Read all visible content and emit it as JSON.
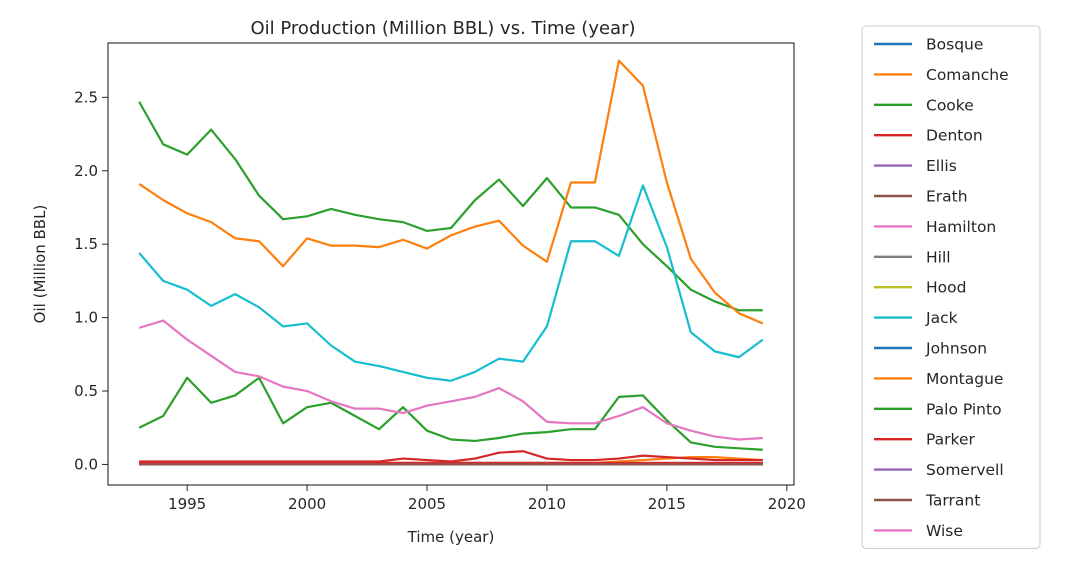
{
  "chart_data": {
    "type": "line",
    "title": "Oil Production (Million BBL) vs. Time (year)",
    "xlabel": "Time (year)",
    "ylabel": "Oil (Million BBL)",
    "xlim": [
      1991.7,
      2020.3
    ],
    "ylim": [
      -0.14,
      2.87
    ],
    "xticks": [
      1995,
      2000,
      2005,
      2010,
      2015,
      2020
    ],
    "yticks": [
      0.0,
      0.5,
      1.0,
      1.5,
      2.0,
      2.5
    ],
    "xtick_labels": [
      "1995",
      "2000",
      "2005",
      "2010",
      "2015",
      "2020"
    ],
    "ytick_labels": [
      "0.0",
      "0.5",
      "1.0",
      "1.5",
      "2.0",
      "2.5"
    ],
    "grid": false,
    "legend_position": "outside-right",
    "x": [
      1993,
      1994,
      1995,
      1996,
      1997,
      1998,
      1999,
      2000,
      2001,
      2002,
      2003,
      2004,
      2005,
      2006,
      2007,
      2008,
      2009,
      2010,
      2011,
      2012,
      2013,
      2014,
      2015,
      2016,
      2017,
      2018,
      2019
    ],
    "series": [
      {
        "name": "Bosque",
        "color": "#1f77b4",
        "values": [
          0.0,
          0.0,
          0.0,
          0.0,
          0.0,
          0.0,
          0.0,
          0.0,
          0.0,
          0.0,
          0.0,
          0.0,
          0.0,
          0.0,
          0.0,
          0.0,
          0.0,
          0.0,
          0.0,
          0.0,
          0.0,
          0.0,
          0.0,
          0.0,
          0.0,
          0.0,
          0.0
        ]
      },
      {
        "name": "Comanche",
        "color": "#ff7f0e",
        "values": [
          0.01,
          0.01,
          0.01,
          0.01,
          0.01,
          0.01,
          0.01,
          0.01,
          0.01,
          0.01,
          0.01,
          0.01,
          0.01,
          0.01,
          0.01,
          0.01,
          0.01,
          0.01,
          0.01,
          0.01,
          0.02,
          0.03,
          0.04,
          0.05,
          0.05,
          0.04,
          0.03
        ]
      },
      {
        "name": "Cooke",
        "color": "#2ca02c",
        "values": [
          2.47,
          2.18,
          2.11,
          2.28,
          2.08,
          1.83,
          1.67,
          1.69,
          1.74,
          1.7,
          1.67,
          1.65,
          1.59,
          1.61,
          1.8,
          1.94,
          1.76,
          1.95,
          1.75,
          1.75,
          1.7,
          1.5,
          1.35,
          1.19,
          1.11,
          1.05,
          1.05
        ]
      },
      {
        "name": "Denton",
        "color": "#d62728",
        "values": [
          0.02,
          0.02,
          0.02,
          0.02,
          0.02,
          0.02,
          0.02,
          0.02,
          0.02,
          0.02,
          0.02,
          0.04,
          0.03,
          0.02,
          0.04,
          0.08,
          0.09,
          0.04,
          0.03,
          0.03,
          0.04,
          0.06,
          0.05,
          0.04,
          0.03,
          0.03,
          0.03
        ]
      },
      {
        "name": "Ellis",
        "color": "#9467bd",
        "values": [
          0.0,
          0.0,
          0.0,
          0.0,
          0.0,
          0.0,
          0.0,
          0.0,
          0.0,
          0.0,
          0.0,
          0.0,
          0.0,
          0.0,
          0.0,
          0.0,
          0.0,
          0.0,
          0.0,
          0.0,
          0.0,
          0.0,
          0.0,
          0.0,
          0.0,
          0.0,
          0.0
        ]
      },
      {
        "name": "Erath",
        "color": "#8c564b",
        "values": [
          0.01,
          0.01,
          0.01,
          0.01,
          0.01,
          0.01,
          0.01,
          0.01,
          0.01,
          0.01,
          0.01,
          0.01,
          0.01,
          0.01,
          0.01,
          0.01,
          0.01,
          0.01,
          0.01,
          0.01,
          0.01,
          0.01,
          0.01,
          0.01,
          0.01,
          0.01,
          0.01
        ]
      },
      {
        "name": "Hamilton",
        "color": "#e377c2",
        "values": [
          0.0,
          0.0,
          0.0,
          0.0,
          0.0,
          0.0,
          0.0,
          0.0,
          0.0,
          0.0,
          0.0,
          0.0,
          0.0,
          0.0,
          0.0,
          0.0,
          0.0,
          0.0,
          0.0,
          0.0,
          0.0,
          0.0,
          0.0,
          0.0,
          0.0,
          0.0,
          0.0
        ]
      },
      {
        "name": "Hill",
        "color": "#7f7f7f",
        "values": [
          0.0,
          0.0,
          0.0,
          0.0,
          0.0,
          0.0,
          0.0,
          0.0,
          0.0,
          0.0,
          0.0,
          0.0,
          0.0,
          0.0,
          0.0,
          0.0,
          0.0,
          0.0,
          0.0,
          0.0,
          0.0,
          0.0,
          0.0,
          0.0,
          0.0,
          0.0,
          0.0
        ]
      },
      {
        "name": "Hood",
        "color": "#bcbd22",
        "values": [
          0.0,
          0.0,
          0.0,
          0.0,
          0.0,
          0.0,
          0.0,
          0.0,
          0.0,
          0.0,
          0.0,
          0.0,
          0.0,
          0.0,
          0.0,
          0.0,
          0.0,
          0.0,
          0.0,
          0.0,
          0.0,
          0.0,
          0.0,
          0.0,
          0.0,
          0.0,
          0.0
        ]
      },
      {
        "name": "Jack",
        "color": "#17becf",
        "values": [
          1.44,
          1.25,
          1.19,
          1.08,
          1.16,
          1.07,
          0.94,
          0.96,
          0.81,
          0.7,
          0.67,
          0.63,
          0.59,
          0.57,
          0.63,
          0.72,
          0.7,
          0.94,
          1.52,
          1.52,
          1.42,
          1.9,
          1.48,
          0.9,
          0.77,
          0.73,
          0.85
        ]
      },
      {
        "name": "Johnson",
        "color": "#1f77b4",
        "values": [
          0.0,
          0.0,
          0.0,
          0.0,
          0.0,
          0.0,
          0.0,
          0.0,
          0.0,
          0.0,
          0.0,
          0.0,
          0.0,
          0.0,
          0.0,
          0.0,
          0.0,
          0.0,
          0.0,
          0.0,
          0.0,
          0.0,
          0.0,
          0.0,
          0.0,
          0.0,
          0.0
        ]
      },
      {
        "name": "Montague",
        "color": "#ff7f0e",
        "values": [
          1.91,
          1.8,
          1.71,
          1.65,
          1.54,
          1.52,
          1.35,
          1.54,
          1.49,
          1.49,
          1.48,
          1.53,
          1.47,
          1.56,
          1.62,
          1.66,
          1.49,
          1.38,
          1.92,
          1.92,
          2.75,
          2.58,
          1.92,
          1.4,
          1.17,
          1.03,
          0.96
        ]
      },
      {
        "name": "Palo Pinto",
        "color": "#2ca02c",
        "values": [
          0.25,
          0.33,
          0.59,
          0.42,
          0.47,
          0.59,
          0.28,
          0.39,
          0.42,
          0.33,
          0.24,
          0.39,
          0.23,
          0.17,
          0.16,
          0.18,
          0.21,
          0.22,
          0.24,
          0.24,
          0.46,
          0.47,
          0.3,
          0.15,
          0.12,
          0.11,
          0.1
        ]
      },
      {
        "name": "Parker",
        "color": "#d62728",
        "values": [
          0.01,
          0.01,
          0.01,
          0.01,
          0.01,
          0.01,
          0.01,
          0.01,
          0.01,
          0.01,
          0.01,
          0.01,
          0.01,
          0.01,
          0.01,
          0.01,
          0.01,
          0.01,
          0.01,
          0.01,
          0.01,
          0.01,
          0.01,
          0.01,
          0.01,
          0.01,
          0.01
        ]
      },
      {
        "name": "Somervell",
        "color": "#9467bd",
        "values": [
          0.0,
          0.0,
          0.0,
          0.0,
          0.0,
          0.0,
          0.0,
          0.0,
          0.0,
          0.0,
          0.0,
          0.0,
          0.0,
          0.0,
          0.0,
          0.0,
          0.0,
          0.0,
          0.0,
          0.0,
          0.0,
          0.0,
          0.0,
          0.0,
          0.0,
          0.0,
          0.0
        ]
      },
      {
        "name": "Tarrant",
        "color": "#8c564b",
        "values": [
          0.0,
          0.0,
          0.0,
          0.0,
          0.0,
          0.0,
          0.0,
          0.0,
          0.0,
          0.0,
          0.0,
          0.0,
          0.0,
          0.0,
          0.0,
          0.0,
          0.0,
          0.0,
          0.0,
          0.0,
          0.0,
          0.0,
          0.0,
          0.0,
          0.0,
          0.0,
          0.0
        ]
      },
      {
        "name": "Wise",
        "color": "#e377c2",
        "values": [
          0.93,
          0.98,
          0.85,
          0.74,
          0.63,
          0.6,
          0.53,
          0.5,
          0.43,
          0.38,
          0.38,
          0.35,
          0.4,
          0.43,
          0.46,
          0.52,
          0.43,
          0.29,
          0.28,
          0.28,
          0.33,
          0.39,
          0.28,
          0.23,
          0.19,
          0.17,
          0.18
        ]
      }
    ]
  }
}
